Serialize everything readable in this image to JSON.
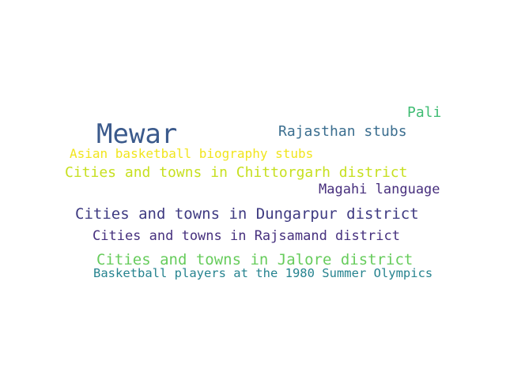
{
  "words": [
    {
      "text": "Pali",
      "color": "#3fbc73"
    },
    {
      "text": "Mewar",
      "color": "#3b5a8c"
    },
    {
      "text": "Rajasthan stubs",
      "color": "#3b6e8f"
    },
    {
      "text": "Asian basketball biography stubs",
      "color": "#f1e51d"
    },
    {
      "text": "Cities and towns in Chittorgarh district",
      "color": "#c7e020"
    },
    {
      "text": "Magahi language",
      "color": "#472f7d"
    },
    {
      "text": "Cities and towns in Dungarpur district",
      "color": "#3e3a81"
    },
    {
      "text": "Cities and towns in Rajsamand district",
      "color": "#46307e"
    },
    {
      "text": "Cities and towns in Jalore district",
      "color": "#67cc5c"
    },
    {
      "text": "Basketball players at the 1980 Summer Olympics",
      "color": "#26838f"
    }
  ]
}
